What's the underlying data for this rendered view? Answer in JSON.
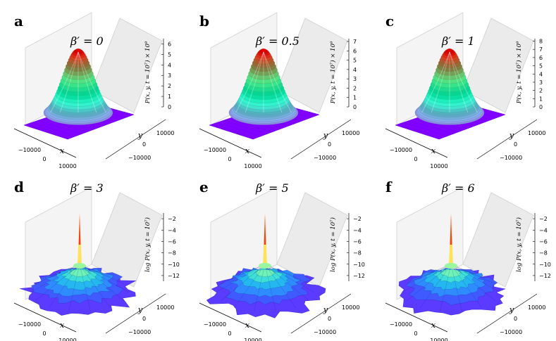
{
  "chart_data": [
    {
      "type": "surface3d",
      "panel_label": "a",
      "title": "β′ = 0",
      "zlabel": "P(x, y, t = 10⁷) × 10⁹",
      "xlabel": "x",
      "ylabel": "y",
      "x_ticks": [
        "−10000",
        "0",
        "10000"
      ],
      "y_ticks": [
        "10000",
        "0",
        "−10000"
      ],
      "z_ticks": [
        "0",
        "1",
        "2",
        "3",
        "4",
        "5",
        "6"
      ],
      "zlim": [
        0,
        6.5
      ],
      "peak": 6.3
    },
    {
      "type": "surface3d",
      "panel_label": "b",
      "title": "β′ = 0.5",
      "zlabel": "P(x, y, t = 10⁷) × 10⁹",
      "xlabel": "x",
      "ylabel": "y",
      "x_ticks": [
        "−10000",
        "0",
        "10000"
      ],
      "y_ticks": [
        "10000",
        "0",
        "−10000"
      ],
      "z_ticks": [
        "0",
        "1",
        "2",
        "3",
        "4",
        "5",
        "6",
        "7"
      ],
      "zlim": [
        0,
        7.3
      ],
      "peak": 6.9
    },
    {
      "type": "surface3d",
      "panel_label": "c",
      "title": "β′ = 1",
      "zlabel": "P(x, y, t = 10⁷) × 10⁹",
      "xlabel": "x",
      "ylabel": "y",
      "x_ticks": [
        "−10000",
        "0",
        "10000"
      ],
      "y_ticks": [
        "10000",
        "0",
        "−10000"
      ],
      "z_ticks": [
        "0",
        "1",
        "2",
        "3",
        "4",
        "5",
        "6",
        "7",
        "8"
      ],
      "zlim": [
        0,
        8.3
      ],
      "peak": 7.6
    },
    {
      "type": "surface3d",
      "panel_label": "d",
      "title": "β′ = 3",
      "zlabel": "log P(x, y, t = 10⁷)",
      "xlabel": "x",
      "ylabel": "y",
      "x_ticks": [
        "−10000",
        "0",
        "10000"
      ],
      "y_ticks": [
        "10000",
        "0",
        "−10000"
      ],
      "z_ticks": [
        "−2",
        "−4",
        "−6",
        "−8",
        "−10",
        "−12"
      ],
      "zlim": [
        -13,
        -1
      ],
      "peak": -2
    },
    {
      "type": "surface3d",
      "panel_label": "e",
      "title": "β′ = 5",
      "zlabel": "log P(x, y, t = 10⁷)",
      "xlabel": "x",
      "ylabel": "y",
      "x_ticks": [
        "−10000",
        "0",
        "10000"
      ],
      "y_ticks": [
        "10000",
        "0",
        "−10000"
      ],
      "z_ticks": [
        "−2",
        "−4",
        "−6",
        "−8",
        "−10",
        "−12"
      ],
      "zlim": [
        -13,
        -1
      ],
      "peak": -2
    },
    {
      "type": "surface3d",
      "panel_label": "f",
      "title": "β′ = 6",
      "zlabel": "log P(x, y, t = 10⁷)",
      "xlabel": "x",
      "ylabel": "y",
      "x_ticks": [
        "−10000",
        "0",
        "10000"
      ],
      "y_ticks": [
        "10000",
        "0",
        "−10000"
      ],
      "z_ticks": [
        "−2",
        "−4",
        "−6",
        "−8",
        "−10",
        "−12"
      ],
      "zlim": [
        -13,
        -1
      ],
      "peak": -2
    }
  ]
}
